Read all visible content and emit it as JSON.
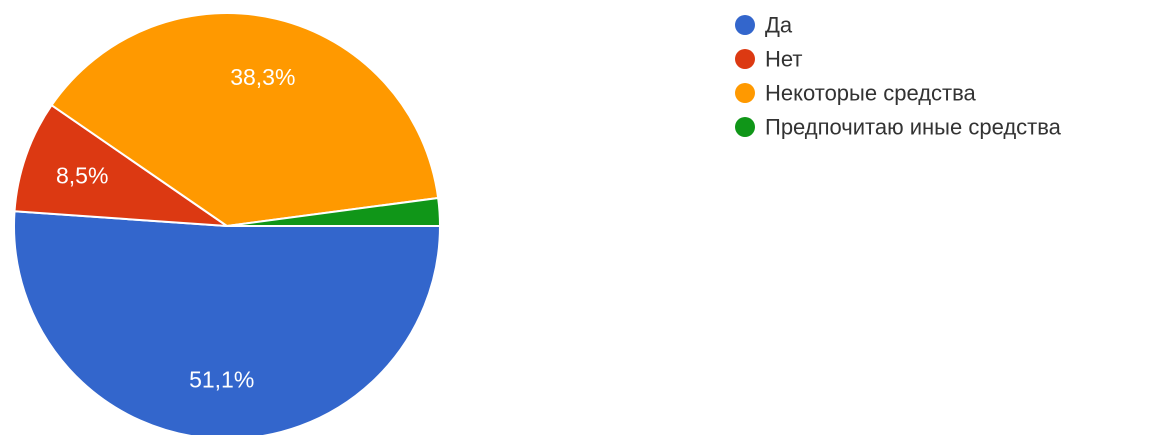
{
  "chart_data": {
    "type": "pie",
    "slices": [
      {
        "label": "Да",
        "value": 51.1,
        "value_label": "51,1%",
        "color": "#3366cc"
      },
      {
        "label": "Нет",
        "value": 8.5,
        "value_label": "8,5%",
        "color": "#dc3912"
      },
      {
        "label": "Некоторые средства",
        "value": 38.3,
        "value_label": "38,3%",
        "color": "#ff9900"
      },
      {
        "label": "Предпочитаю иные средства",
        "value": 2.1,
        "value_label": "",
        "color": "#109618"
      }
    ],
    "legend_position": "right",
    "start_angle_deg": 0,
    "direction": "clockwise"
  }
}
